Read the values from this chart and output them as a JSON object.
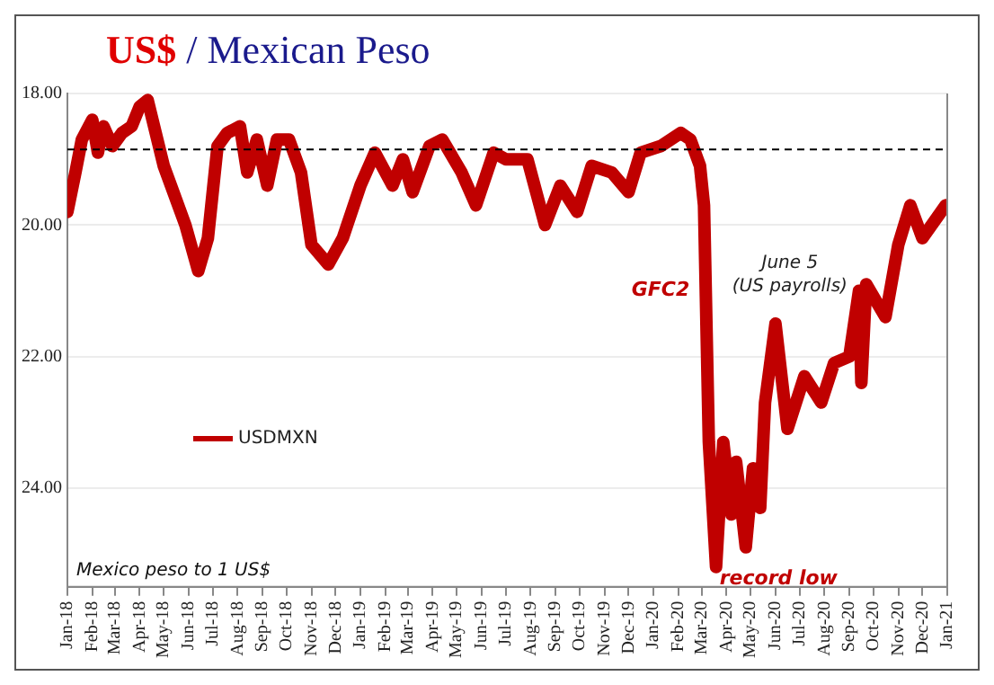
{
  "chart_data": {
    "type": "line",
    "title": "US$ / Mexican Peso",
    "legend": "left",
    "grid": "y",
    "marker": "none",
    "line_style": "solid",
    "xlim": [
      "2018-01-01",
      "2021-01-01"
    ],
    "xticks": [
      {
        "value": "2018-01-01",
        "label": "Jan-18"
      },
      {
        "value": "2018-02-01",
        "label": "Feb-18"
      },
      {
        "value": "2018-03-01",
        "label": "Mar-18"
      },
      {
        "value": "2018-04-01",
        "label": "Apr-18"
      },
      {
        "value": "2018-05-01",
        "label": "May-18"
      },
      {
        "value": "2018-06-01",
        "label": "Jun-18"
      },
      {
        "value": "2018-07-01",
        "label": "Jul-18"
      },
      {
        "value": "2018-08-01",
        "label": "Aug-18"
      },
      {
        "value": "2018-09-01",
        "label": "Sep-18"
      },
      {
        "value": "2018-10-01",
        "label": "Oct-18"
      },
      {
        "value": "2018-11-01",
        "label": "Nov-18"
      },
      {
        "value": "2018-12-01",
        "label": "Dec-18"
      },
      {
        "value": "2019-01-01",
        "label": "Jan-19"
      },
      {
        "value": "2019-02-01",
        "label": "Feb-19"
      },
      {
        "value": "2019-03-01",
        "label": "Mar-19"
      },
      {
        "value": "2019-04-01",
        "label": "Apr-19"
      },
      {
        "value": "2019-05-01",
        "label": "May-19"
      },
      {
        "value": "2019-06-01",
        "label": "Jun-19"
      },
      {
        "value": "2019-07-01",
        "label": "Jul-19"
      },
      {
        "value": "2019-08-01",
        "label": "Aug-19"
      },
      {
        "value": "2019-09-01",
        "label": "Sep-19"
      },
      {
        "value": "2019-10-01",
        "label": "Oct-19"
      },
      {
        "value": "2019-11-01",
        "label": "Nov-19"
      },
      {
        "value": "2019-12-01",
        "label": "Dec-19"
      },
      {
        "value": "2020-01-01",
        "label": "Jan-20"
      },
      {
        "value": "2020-02-01",
        "label": "Feb-20"
      },
      {
        "value": "2020-03-01",
        "label": "Mar-20"
      },
      {
        "value": "2020-04-01",
        "label": "Apr-20"
      },
      {
        "value": "2020-05-01",
        "label": "May-20"
      },
      {
        "value": "2020-06-01",
        "label": "Jun-20"
      },
      {
        "value": "2020-07-01",
        "label": "Jul-20"
      },
      {
        "value": "2020-08-01",
        "label": "Aug-20"
      },
      {
        "value": "2020-09-01",
        "label": "Sep-20"
      },
      {
        "value": "2020-10-01",
        "label": "Oct-20"
      },
      {
        "value": "2020-11-01",
        "label": "Nov-20"
      },
      {
        "value": "2020-12-01",
        "label": "Dec-20"
      },
      {
        "value": "2021-01-01",
        "label": "Jan-21"
      }
    ],
    "ylim": [
      25.5,
      18
    ],
    "yticks": [
      {
        "value": 18,
        "label": "18.00"
      },
      {
        "value": 20,
        "label": "20.00"
      },
      {
        "value": 22,
        "label": "22.00"
      },
      {
        "value": 24,
        "label": "24.00"
      }
    ],
    "ref_lines": [
      {
        "axis": "y",
        "value": 18.85,
        "color": "#000000",
        "line_style": "dashed"
      }
    ],
    "annotations": [
      {
        "text": "GFC2",
        "x": "2020-03-04",
        "y": 21
      },
      {
        "text": "June 5\n(US payrolls)",
        "x": "2020-06-01",
        "y": 21.45
      },
      {
        "text": "record low",
        "x": "2020-03-19",
        "y": 25.15
      },
      "Mexico peso to 1 US$"
    ],
    "series": [
      {
        "name": "USDMXN",
        "color": "#c00000",
        "x": [
          "2018-01-01",
          "2018-01-11",
          "2018-01-19",
          "2018-02-01",
          "2018-02-08",
          "2018-02-15",
          "2018-02-26",
          "2018-03-10",
          "2018-03-22",
          "2018-04-01",
          "2018-04-11",
          "2018-04-19",
          "2018-05-01",
          "2018-05-13",
          "2018-05-28",
          "2018-06-13",
          "2018-06-25",
          "2018-07-07",
          "2018-07-19",
          "2018-08-04",
          "2018-08-13",
          "2018-08-25",
          "2018-09-07",
          "2018-09-19",
          "2018-10-04",
          "2018-10-19",
          "2018-11-01",
          "2018-11-22",
          "2018-12-10",
          "2019-01-01",
          "2019-01-19",
          "2019-02-10",
          "2019-02-23",
          "2019-03-07",
          "2019-03-28",
          "2019-04-13",
          "2019-05-07",
          "2019-05-25",
          "2019-06-16",
          "2019-07-01",
          "2019-07-28",
          "2019-08-19",
          "2019-09-07",
          "2019-09-28",
          "2019-10-16",
          "2019-11-10",
          "2019-12-01",
          "2019-12-16",
          "2020-01-10",
          "2020-02-04",
          "2020-02-16",
          "2020-02-28",
          "2020-03-04",
          "2020-03-10",
          "2020-03-19",
          "2020-03-28",
          "2020-04-07",
          "2020-04-13",
          "2020-04-25",
          "2020-05-04",
          "2020-05-13",
          "2020-05-19",
          "2020-06-01",
          "2020-06-16",
          "2020-07-07",
          "2020-07-28",
          "2020-08-13",
          "2020-09-01",
          "2020-09-13",
          "2020-09-16",
          "2020-09-22",
          "2020-10-16",
          "2020-11-01",
          "2020-11-16",
          "2020-12-01",
          "2020-12-30"
        ],
        "values": [
          19.8,
          19.2,
          18.7,
          18.4,
          18.9,
          18.5,
          18.8,
          18.6,
          18.5,
          18.2,
          18.1,
          18.5,
          19.1,
          19.5,
          20.0,
          20.7,
          20.2,
          18.8,
          18.6,
          18.5,
          19.2,
          18.7,
          19.4,
          18.7,
          18.7,
          19.2,
          20.3,
          20.6,
          20.2,
          19.4,
          18.9,
          19.4,
          19.0,
          19.5,
          18.8,
          18.7,
          19.2,
          19.7,
          18.9,
          19.0,
          19.0,
          20.0,
          19.4,
          19.8,
          19.1,
          19.2,
          19.5,
          18.9,
          18.8,
          18.6,
          18.7,
          19.1,
          19.7,
          23.3,
          25.2,
          23.3,
          24.4,
          23.6,
          24.9,
          23.7,
          24.3,
          22.7,
          21.5,
          23.1,
          22.3,
          22.7,
          22.1,
          22.0,
          21.0,
          22.4,
          20.9,
          21.4,
          20.3,
          19.7,
          20.2,
          19.7
        ]
      }
    ]
  }
}
